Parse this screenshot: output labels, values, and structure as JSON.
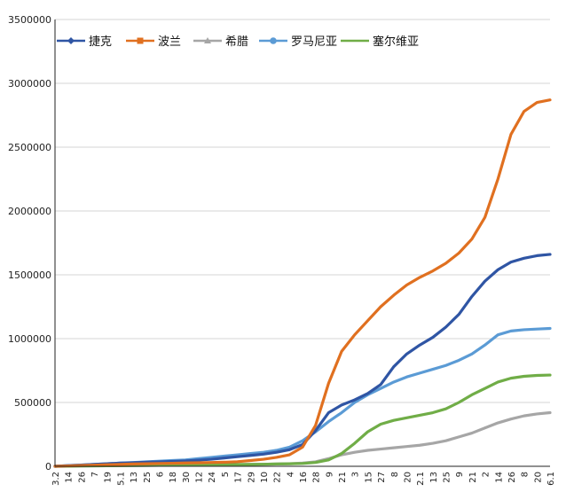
{
  "chart_data": {
    "type": "line",
    "title": "",
    "xlabel": "",
    "ylabel": "",
    "ylim": [
      0,
      3500000
    ],
    "y_ticks": [
      0,
      500000,
      1000000,
      1500000,
      2000000,
      2500000,
      3000000,
      3500000
    ],
    "grid": "horizontal",
    "legend_position": "top-left",
    "categories": [
      "3.2",
      "14",
      "26",
      "7",
      "19",
      "5.1",
      "13",
      "25",
      "6",
      "18",
      "30",
      "12",
      "24",
      "5",
      "17",
      "29",
      "10",
      "22",
      "4",
      "16",
      "28",
      "9",
      "21",
      "3",
      "15",
      "27",
      "8",
      "20",
      "2.1",
      "13",
      "25",
      "9",
      "21",
      "2",
      "14",
      "26",
      "8",
      "20",
      "6.1"
    ],
    "series": [
      {
        "name": "捷克",
        "color": "#2f55a4",
        "marker": "diamond",
        "values": [
          0,
          5000,
          10000,
          15000,
          20000,
          25000,
          28000,
          32000,
          35000,
          38000,
          42000,
          48000,
          55000,
          65000,
          75000,
          85000,
          95000,
          110000,
          130000,
          170000,
          280000,
          420000,
          480000,
          520000,
          570000,
          640000,
          780000,
          880000,
          950000,
          1010000,
          1090000,
          1190000,
          1330000,
          1450000,
          1540000,
          1600000,
          1630000,
          1650000,
          1660000
        ]
      },
      {
        "name": "波兰",
        "color": "#e07020",
        "marker": "square",
        "values": [
          0,
          3000,
          6000,
          9000,
          12000,
          15000,
          18000,
          20000,
          22000,
          24000,
          26000,
          28000,
          30000,
          32000,
          36000,
          45000,
          55000,
          70000,
          90000,
          150000,
          320000,
          650000,
          900000,
          1030000,
          1140000,
          1250000,
          1340000,
          1420000,
          1480000,
          1530000,
          1590000,
          1670000,
          1780000,
          1950000,
          2250000,
          2600000,
          2780000,
          2850000,
          2870000
        ]
      },
      {
        "name": "希腊",
        "color": "#a6a6a6",
        "marker": "triangle",
        "values": [
          0,
          1000,
          2000,
          3000,
          4000,
          5000,
          6000,
          7000,
          8000,
          9000,
          10000,
          11000,
          12000,
          13000,
          14000,
          15000,
          16000,
          18000,
          20000,
          25000,
          35000,
          60000,
          90000,
          110000,
          125000,
          135000,
          145000,
          155000,
          165000,
          180000,
          200000,
          230000,
          260000,
          300000,
          340000,
          370000,
          395000,
          410000,
          420000
        ]
      },
      {
        "name": "罗马尼亚",
        "color": "#5b9bd5",
        "marker": "circle",
        "values": [
          0,
          5000,
          10000,
          15000,
          20000,
          25000,
          30000,
          35000,
          40000,
          45000,
          50000,
          60000,
          70000,
          80000,
          90000,
          100000,
          110000,
          125000,
          150000,
          200000,
          270000,
          350000,
          420000,
          500000,
          560000,
          610000,
          660000,
          700000,
          730000,
          760000,
          790000,
          830000,
          880000,
          950000,
          1030000,
          1060000,
          1070000,
          1075000,
          1080000
        ]
      },
      {
        "name": "塞尔维亚",
        "color": "#70ad47",
        "marker": "line",
        "values": [
          0,
          1000,
          2000,
          3000,
          4000,
          5000,
          6000,
          7000,
          8000,
          9000,
          10000,
          11000,
          12000,
          13000,
          14000,
          15000,
          16000,
          18000,
          20000,
          22000,
          30000,
          50000,
          100000,
          180000,
          270000,
          330000,
          360000,
          380000,
          400000,
          420000,
          450000,
          500000,
          560000,
          610000,
          660000,
          690000,
          705000,
          712000,
          715000
        ]
      }
    ]
  }
}
